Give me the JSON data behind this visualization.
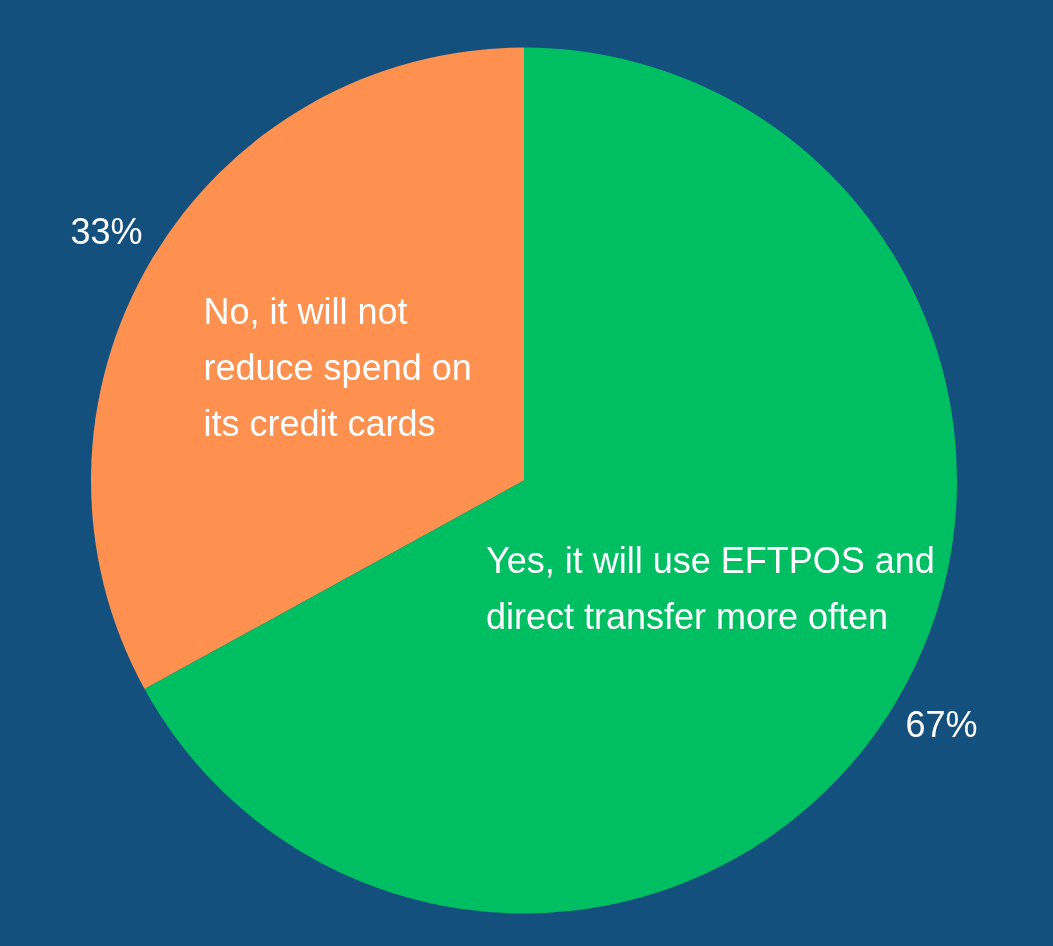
{
  "chart_data": {
    "type": "pie",
    "categories": [
      "No, it will not reduce spend on its credit cards",
      "Yes, it will use EFTPOS and direct transfer more often"
    ],
    "values": [
      33,
      67
    ],
    "colors": [
      "#fe914f",
      "#00bf63"
    ],
    "value_labels": [
      "33%",
      "67%"
    ],
    "legend": false
  }
}
